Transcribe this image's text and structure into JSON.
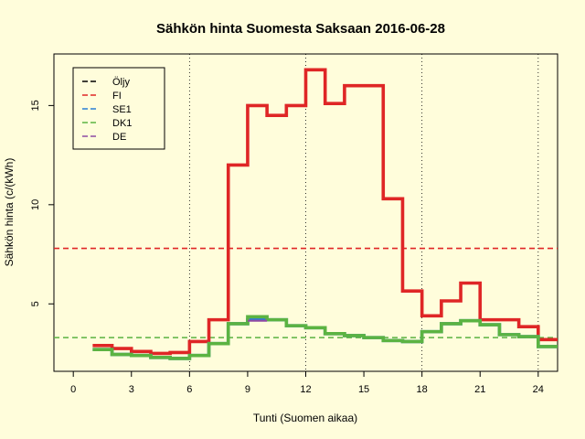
{
  "chart_data": {
    "type": "line",
    "title": "Sähkön hinta Suomesta Saksaan 2016-06-28",
    "xlabel": "Tunti (Suomen aikaa)",
    "ylabel": "Sähkön hinta (c/(kWh)",
    "xlim": [
      -1,
      25
    ],
    "ylim": [
      1.6,
      17.6
    ],
    "xticks": [
      0,
      3,
      6,
      9,
      12,
      15,
      18,
      21,
      24
    ],
    "yticks": [
      5,
      10,
      15
    ],
    "vlines": [
      6,
      12,
      18,
      24
    ],
    "legend_position": "top-left",
    "series": [
      {
        "name": "Öljy",
        "color": "#000000",
        "style": "dashed",
        "values": []
      },
      {
        "name": "FI",
        "color": "#df2626",
        "style": "step",
        "x": [
          1,
          2,
          3,
          4,
          5,
          6,
          7,
          8,
          9,
          10,
          11,
          12,
          13,
          14,
          15,
          16,
          17,
          18,
          19,
          20,
          21,
          22,
          23,
          24,
          25
        ],
        "y": [
          2.9,
          2.75,
          2.6,
          2.5,
          2.55,
          3.1,
          4.2,
          12.0,
          15.0,
          14.5,
          15.0,
          16.8,
          15.1,
          16.0,
          16.0,
          10.3,
          5.65,
          4.4,
          5.15,
          6.05,
          4.2,
          4.2,
          3.85,
          3.2,
          3.2
        ]
      },
      {
        "name": "SE1",
        "color": "#2a7fd4",
        "style": "step",
        "x": [
          1,
          2,
          3,
          4,
          5,
          6,
          7,
          8,
          9,
          10,
          11,
          12,
          13,
          14,
          15,
          16,
          17,
          18,
          19,
          20,
          21,
          22,
          23,
          24,
          25
        ],
        "y": [
          2.7,
          2.45,
          2.4,
          2.3,
          2.25,
          2.4,
          3.0,
          4.0,
          4.2,
          4.2,
          3.9,
          3.8,
          3.5,
          3.4,
          3.3,
          3.15,
          3.1,
          3.6,
          4.0,
          4.15,
          3.95,
          3.45,
          3.35,
          2.85,
          2.85
        ]
      },
      {
        "name": "DK1",
        "color": "#5bb342",
        "style": "step",
        "x": [
          1,
          2,
          3,
          4,
          5,
          6,
          7,
          8,
          9,
          10,
          11,
          12,
          13,
          14,
          15,
          16,
          17,
          18,
          19,
          20,
          21,
          22,
          23,
          24,
          25
        ],
        "y": [
          2.7,
          2.45,
          2.4,
          2.3,
          2.25,
          2.4,
          3.0,
          4.0,
          4.35,
          4.2,
          3.9,
          3.8,
          3.5,
          3.4,
          3.3,
          3.15,
          3.1,
          3.6,
          4.0,
          4.15,
          3.95,
          3.45,
          3.35,
          2.85,
          2.85
        ]
      },
      {
        "name": "DE",
        "color": "#8e4aa3",
        "style": "step",
        "x": [
          9,
          10
        ],
        "y": [
          4.15,
          4.15
        ]
      }
    ],
    "reference_lines": [
      {
        "series": "FI",
        "y": 7.8,
        "color": "#df2626"
      },
      {
        "series": "DK1",
        "y": 3.3,
        "color": "#5bb342"
      }
    ]
  }
}
